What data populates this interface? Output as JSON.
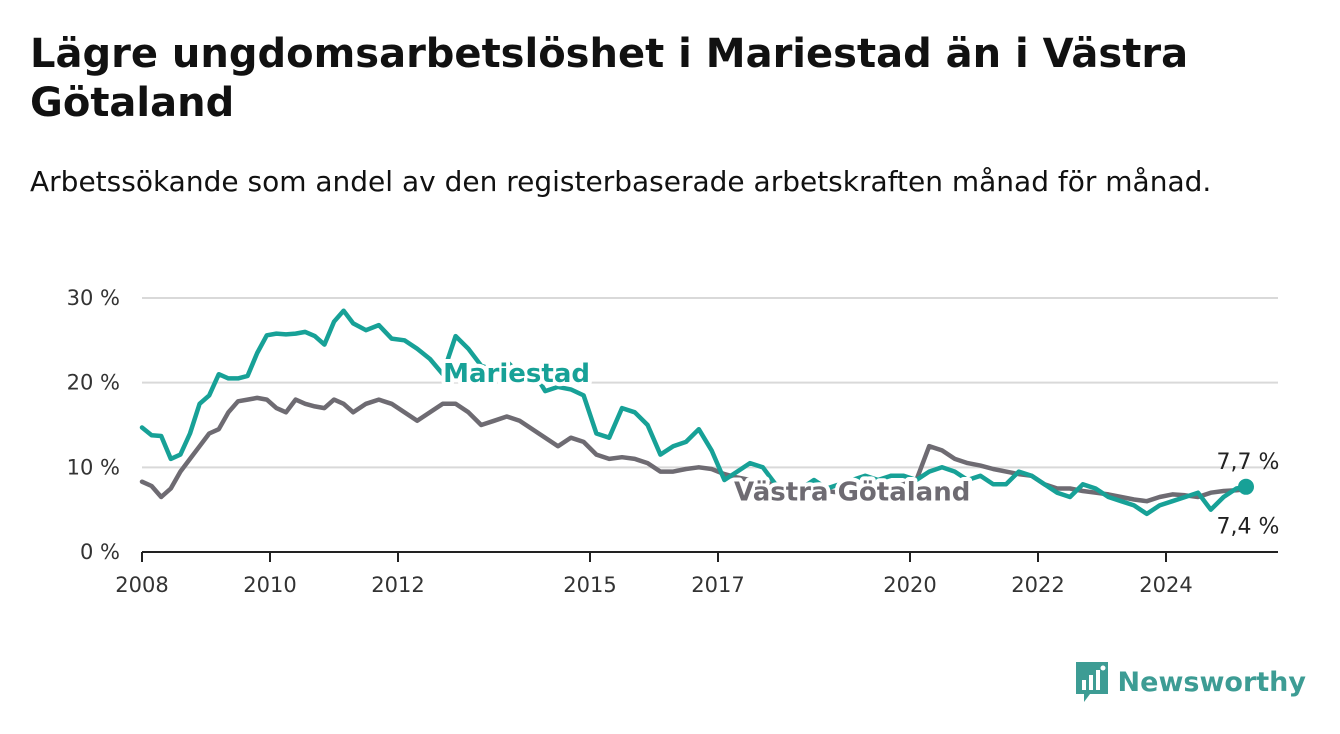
{
  "header": {
    "title": "Lägre ungdomsarbetslöshet i Mariestad än i Västra Götaland",
    "subtitle": "Arbetssökande som andel av den registerbaserade arbetskraften månad för månad."
  },
  "brand": {
    "name": "Newsworthy",
    "icon": "newsworthy-logo-icon"
  },
  "colors": {
    "mariestad": "#17a197",
    "vastra": "#6e6b72",
    "grid": "#d9d9d9",
    "axis": "#222222"
  },
  "chart_data": {
    "type": "line",
    "title": "Lägre ungdomsarbetslöshet i Mariestad än i Västra Götaland",
    "subtitle": "Arbetssökande som andel av den registerbaserade arbetskraften månad för månad.",
    "xlabel": "",
    "ylabel": "",
    "ylim": [
      0,
      30
    ],
    "xlim": [
      2008.0,
      2025.75
    ],
    "y_ticks": [
      0,
      10,
      20,
      30
    ],
    "y_tick_labels": [
      "0 %",
      "10 %",
      "20 %",
      "30 %"
    ],
    "x_ticks": [
      2008,
      2010,
      2012,
      2015,
      2017,
      2020,
      2022,
      2024
    ],
    "x_tick_labels": [
      "2008",
      "2010",
      "2012",
      "2015",
      "2017",
      "2020",
      "2022",
      "2024"
    ],
    "grid": "horizontal",
    "legend": "inline labels",
    "series": [
      {
        "name": "Mariestad",
        "end_label": "7,7 %",
        "x": [
          2008.0,
          2008.15,
          2008.3,
          2008.45,
          2008.6,
          2008.75,
          2008.9,
          2009.05,
          2009.2,
          2009.35,
          2009.5,
          2009.65,
          2009.8,
          2009.95,
          2010.1,
          2010.25,
          2010.4,
          2010.55,
          2010.7,
          2010.85,
          2011.0,
          2011.15,
          2011.3,
          2011.5,
          2011.7,
          2011.9,
          2012.1,
          2012.3,
          2012.5,
          2012.7,
          2012.9,
          2013.1,
          2013.3,
          2013.5,
          2013.7,
          2013.9,
          2014.1,
          2014.3,
          2014.5,
          2014.7,
          2014.9,
          2015.1,
          2015.3,
          2015.5,
          2015.7,
          2015.9,
          2016.1,
          2016.3,
          2016.5,
          2016.7,
          2016.9,
          2017.1,
          2017.3,
          2017.5,
          2017.7,
          2017.9,
          2018.1,
          2018.3,
          2018.5,
          2018.7,
          2018.9,
          2019.1,
          2019.3,
          2019.5,
          2019.7,
          2019.9,
          2020.1,
          2020.3,
          2020.5,
          2020.7,
          2020.9,
          2021.1,
          2021.3,
          2021.5,
          2021.7,
          2021.9,
          2022.1,
          2022.3,
          2022.5,
          2022.7,
          2022.9,
          2023.1,
          2023.3,
          2023.5,
          2023.7,
          2023.9,
          2024.1,
          2024.3,
          2024.5,
          2024.7,
          2024.9,
          2025.1,
          2025.25
        ],
        "y": [
          14.7,
          13.8,
          13.7,
          11.0,
          11.5,
          14.0,
          17.5,
          18.5,
          21.0,
          20.5,
          20.5,
          20.8,
          23.5,
          25.6,
          25.8,
          25.7,
          25.8,
          26.0,
          25.5,
          24.5,
          27.2,
          28.5,
          27.0,
          26.2,
          26.8,
          25.2,
          25.0,
          24.0,
          22.8,
          21.0,
          25.5,
          24.0,
          22.0,
          21.5,
          22.5,
          21.0,
          21.5,
          19.0,
          19.5,
          19.2,
          18.5,
          14.0,
          13.5,
          17.0,
          16.5,
          15.0,
          11.5,
          12.5,
          13.0,
          14.5,
          12.0,
          8.5,
          9.5,
          10.5,
          10.0,
          8.0,
          7.0,
          7.5,
          8.5,
          7.5,
          8.0,
          8.5,
          9.0,
          8.5,
          9.0,
          9.0,
          8.5,
          9.5,
          10.0,
          9.5,
          8.5,
          9.0,
          8.0,
          8.0,
          9.5,
          9.0,
          8.0,
          7.0,
          6.5,
          8.0,
          7.5,
          6.5,
          6.0,
          5.5,
          4.5,
          5.5,
          6.0,
          6.5,
          7.0,
          5.0,
          6.5,
          7.5,
          7.7
        ]
      },
      {
        "name": "Västra Götaland",
        "end_label": "7,4 %",
        "x": [
          2008.0,
          2008.15,
          2008.3,
          2008.45,
          2008.6,
          2008.75,
          2008.9,
          2009.05,
          2009.2,
          2009.35,
          2009.5,
          2009.65,
          2009.8,
          2009.95,
          2010.1,
          2010.25,
          2010.4,
          2010.55,
          2010.7,
          2010.85,
          2011.0,
          2011.15,
          2011.3,
          2011.5,
          2011.7,
          2011.9,
          2012.1,
          2012.3,
          2012.5,
          2012.7,
          2012.9,
          2013.1,
          2013.3,
          2013.5,
          2013.7,
          2013.9,
          2014.1,
          2014.3,
          2014.5,
          2014.7,
          2014.9,
          2015.1,
          2015.3,
          2015.5,
          2015.7,
          2015.9,
          2016.1,
          2016.3,
          2016.5,
          2016.7,
          2016.9,
          2017.1,
          2017.3,
          2017.5,
          2017.7,
          2017.9,
          2018.1,
          2018.3,
          2018.5,
          2018.7,
          2018.9,
          2019.1,
          2019.3,
          2019.5,
          2019.7,
          2019.9,
          2020.1,
          2020.3,
          2020.5,
          2020.7,
          2020.9,
          2021.1,
          2021.3,
          2021.5,
          2021.7,
          2021.9,
          2022.1,
          2022.3,
          2022.5,
          2022.7,
          2022.9,
          2023.1,
          2023.3,
          2023.5,
          2023.7,
          2023.9,
          2024.1,
          2024.3,
          2024.5,
          2024.7,
          2024.9,
          2025.1,
          2025.25
        ],
        "y": [
          8.3,
          7.8,
          6.5,
          7.5,
          9.5,
          11.0,
          12.5,
          14.0,
          14.5,
          16.5,
          17.8,
          18.0,
          18.2,
          18.0,
          17.0,
          16.5,
          18.0,
          17.5,
          17.2,
          17.0,
          18.0,
          17.5,
          16.5,
          17.5,
          18.0,
          17.5,
          16.5,
          15.5,
          16.5,
          17.5,
          17.5,
          16.5,
          15.0,
          15.5,
          16.0,
          15.5,
          14.5,
          13.5,
          12.5,
          13.5,
          13.0,
          11.5,
          11.0,
          11.2,
          11.0,
          10.5,
          9.5,
          9.5,
          9.8,
          10.0,
          9.8,
          9.2,
          8.8,
          8.5,
          8.2,
          8.0,
          7.8,
          7.5,
          7.5,
          7.2,
          7.0,
          7.0,
          7.2,
          7.5,
          7.8,
          8.0,
          8.5,
          12.5,
          12.0,
          11.0,
          10.5,
          10.2,
          9.8,
          9.5,
          9.2,
          9.0,
          8.0,
          7.5,
          7.5,
          7.2,
          7.0,
          6.8,
          6.5,
          6.2,
          6.0,
          6.5,
          6.8,
          6.7,
          6.5,
          7.0,
          7.2,
          7.3,
          7.4
        ]
      }
    ]
  }
}
